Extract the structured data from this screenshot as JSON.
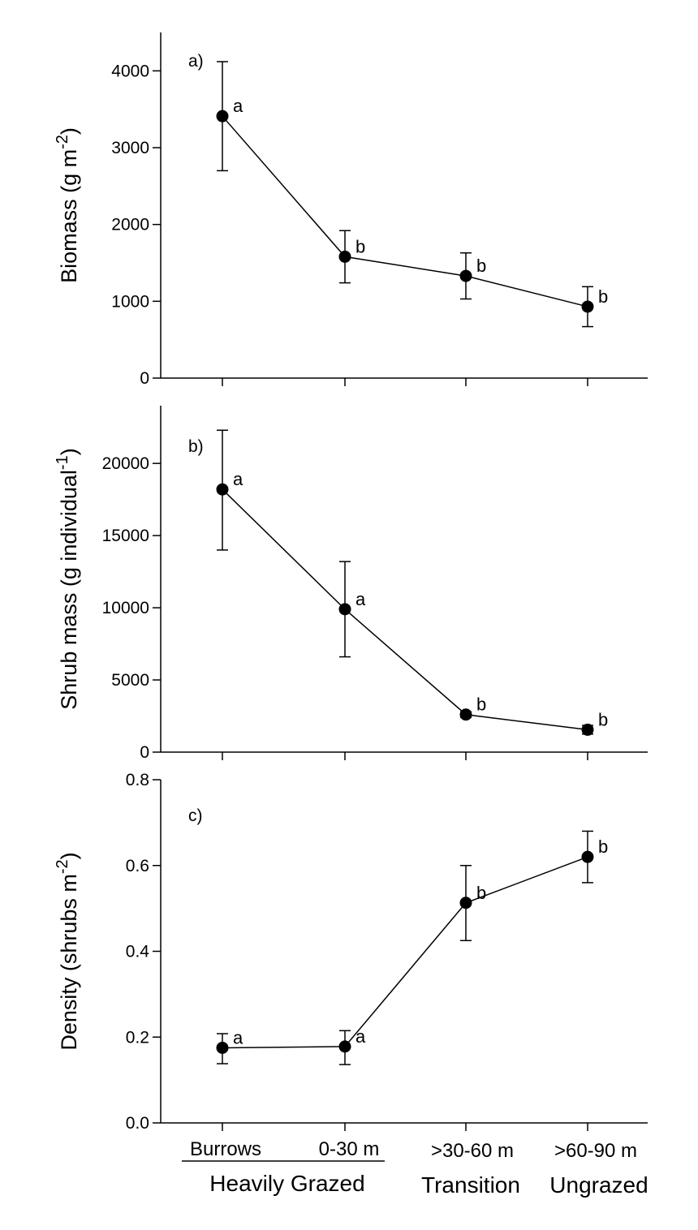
{
  "chart_data": [
    {
      "type": "line",
      "panel_label": "a)",
      "ylabel_base": "Biomass (g m",
      "ylabel_sup": "-2",
      "ylabel_close": ")",
      "ylim": [
        0,
        4500
      ],
      "yticks": [
        0,
        1000,
        2000,
        3000,
        4000
      ],
      "points": [
        {
          "mean": 3410,
          "lo": 2700,
          "hi": 4120,
          "letter": "a"
        },
        {
          "mean": 1580,
          "lo": 1240,
          "hi": 1920,
          "letter": "b"
        },
        {
          "mean": 1330,
          "lo": 1030,
          "hi": 1630,
          "letter": "b"
        },
        {
          "mean": 930,
          "lo": 670,
          "hi": 1190,
          "letter": "b"
        }
      ]
    },
    {
      "type": "line",
      "panel_label": "b)",
      "ylabel_base": "Shrub mass (g individual",
      "ylabel_sup": "-1",
      "ylabel_close": ")",
      "ylim": [
        0,
        24000
      ],
      "yticks": [
        0,
        5000,
        10000,
        15000,
        20000
      ],
      "points": [
        {
          "mean": 18200,
          "lo": 14000,
          "hi": 22300,
          "letter": "a"
        },
        {
          "mean": 9900,
          "lo": 6600,
          "hi": 13200,
          "letter": "a"
        },
        {
          "mean": 2600,
          "lo": 2400,
          "hi": 2800,
          "letter": "b"
        },
        {
          "mean": 1550,
          "lo": 1250,
          "hi": 1850,
          "letter": "b"
        }
      ]
    },
    {
      "type": "line",
      "panel_label": "c)",
      "ylabel_base": "Density (shrubs m",
      "ylabel_sup": "-2",
      "ylabel_close": ")",
      "ylim": [
        0,
        0.8
      ],
      "yticks": [
        0.0,
        0.2,
        0.4,
        0.6,
        0.8
      ],
      "ytick_labels": [
        "0.0",
        "0.2",
        "0.4",
        "0.6",
        "0.8"
      ],
      "points": [
        {
          "mean": 0.175,
          "lo": 0.138,
          "hi": 0.208,
          "letter": "a"
        },
        {
          "mean": 0.178,
          "lo": 0.136,
          "hi": 0.215,
          "letter": "a"
        },
        {
          "mean": 0.513,
          "lo": 0.425,
          "hi": 0.6,
          "letter": "b"
        },
        {
          "mean": 0.62,
          "lo": 0.56,
          "hi": 0.68,
          "letter": "b"
        }
      ]
    }
  ],
  "categories": [
    "Burrows",
    "0-30 m",
    ">30-60 m",
    ">60-90 m"
  ],
  "groups": [
    "Heavily Grazed",
    "Transition",
    "Ungrazed"
  ]
}
